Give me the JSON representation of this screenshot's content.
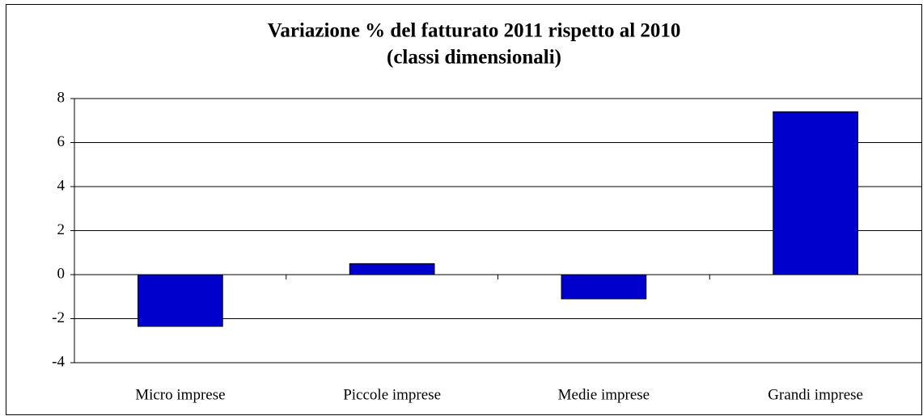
{
  "chart_data": {
    "type": "bar",
    "title": "Variazione % del fatturato 2011 rispetto al 2010",
    "subtitle": "(classi dimensionali)",
    "categories": [
      "Micro imprese",
      "Piccole imprese",
      "Medie imprese",
      "Grandi imprese"
    ],
    "values": [
      -2.35,
      0.5,
      -1.1,
      7.4
    ],
    "color": "#0000cc",
    "ylim": [
      -4,
      8
    ],
    "yticks": [
      -4,
      -2,
      0,
      2,
      4,
      6,
      8
    ],
    "grid": true
  }
}
